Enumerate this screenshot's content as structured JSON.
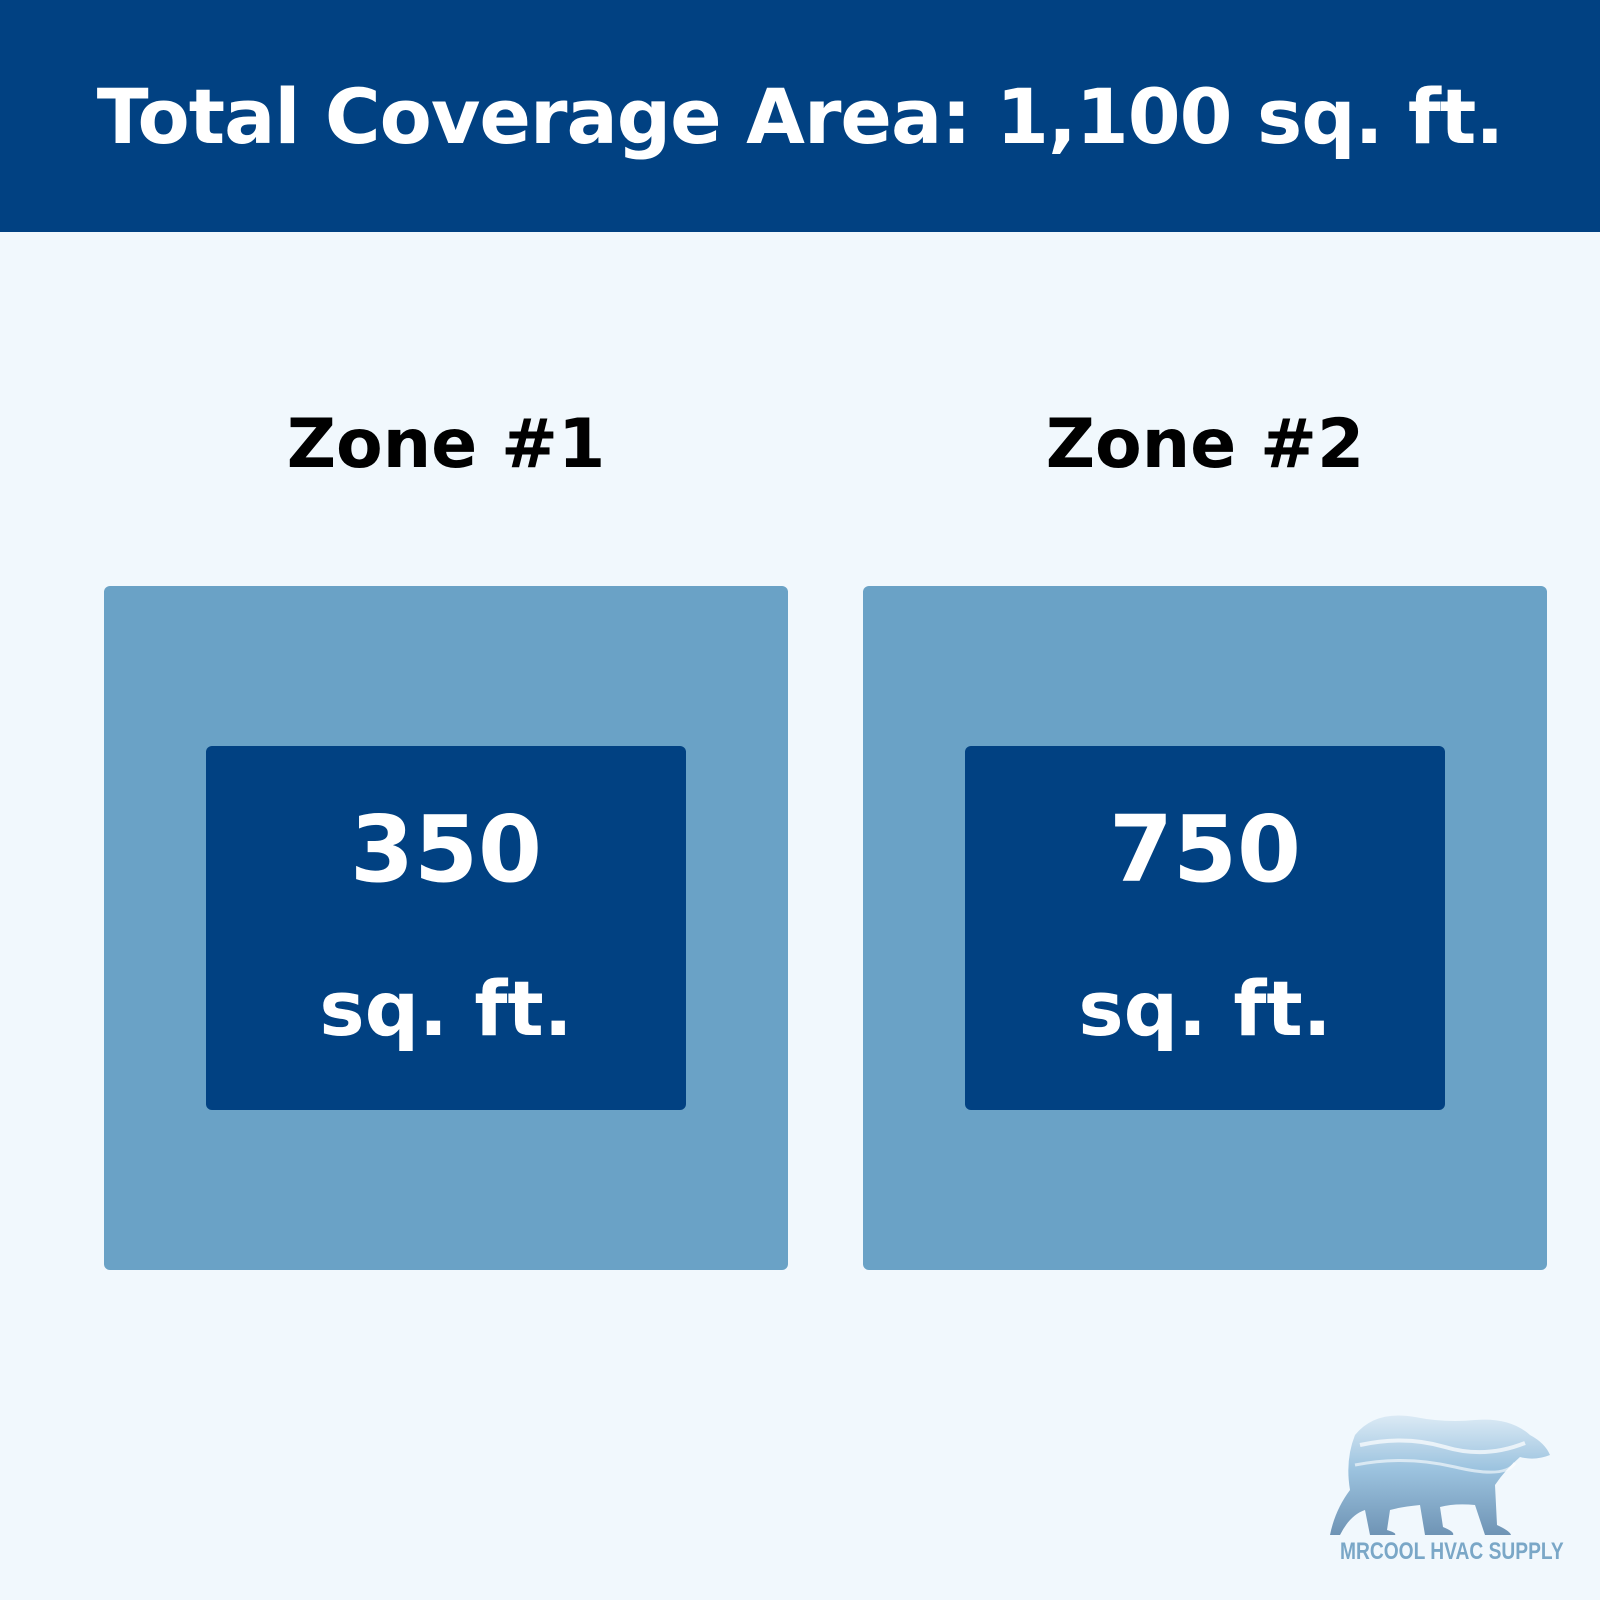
{
  "header": {
    "title": "Total Coverage Area: 1,100 sq. ft."
  },
  "zones": [
    {
      "title": "Zone #1",
      "value": "350",
      "unit": "sq. ft."
    },
    {
      "title": "Zone #2",
      "value": "750",
      "unit": "sq. ft."
    }
  ],
  "logo": {
    "text": "MRCOOL HVAC SUPPLY",
    "icon": "polar-bear-icon"
  },
  "colors": {
    "primary": "#014182",
    "zone_bg": "#6aa2c6",
    "page_bg": "#f1f8fd"
  }
}
